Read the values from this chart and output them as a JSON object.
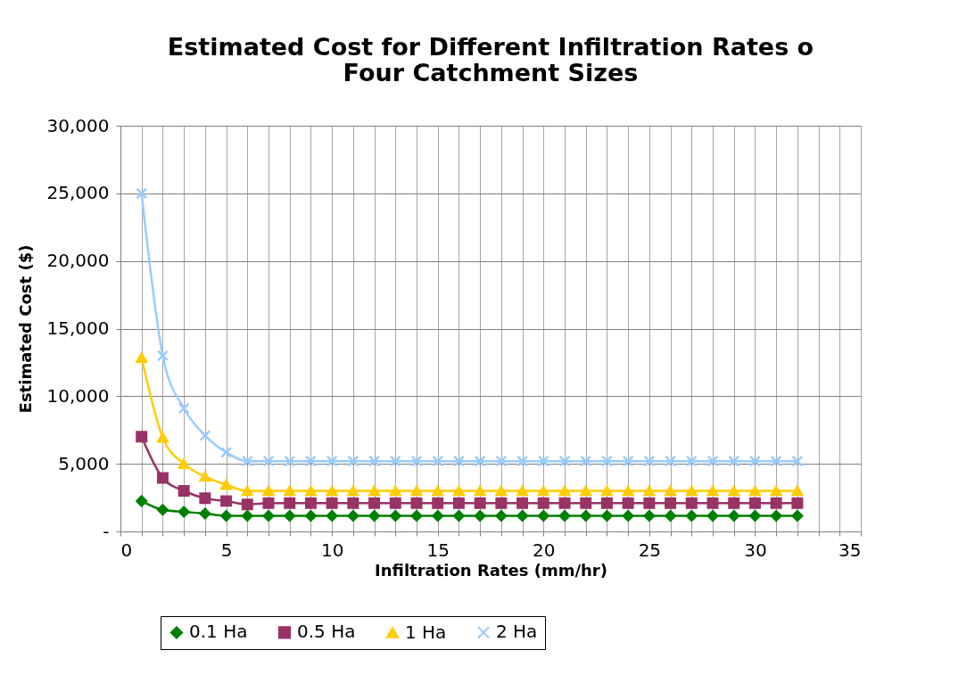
{
  "chart_data": {
    "type": "line",
    "title": "Estimated Cost for Different Infiltration Rates o\nFour Catchment Sizes",
    "xlabel": "Infiltration Rates (mm/hr)",
    "ylabel": "Estimated Cost ($)",
    "x": [
      1,
      2,
      3,
      4,
      5,
      6,
      7,
      8,
      9,
      10,
      11,
      12,
      13,
      14,
      15,
      16,
      17,
      18,
      19,
      20,
      21,
      22,
      23,
      24,
      25,
      26,
      27,
      28,
      29,
      30,
      31,
      32
    ],
    "series": [
      {
        "name": "0.1 Ha",
        "color": "#008000",
        "marker": "diamond",
        "values": [
          2250,
          1600,
          1450,
          1320,
          1150,
          1150,
          1150,
          1150,
          1150,
          1150,
          1150,
          1150,
          1150,
          1150,
          1150,
          1150,
          1150,
          1150,
          1150,
          1150,
          1150,
          1150,
          1150,
          1150,
          1150,
          1150,
          1150,
          1150,
          1150,
          1150,
          1150,
          1150
        ]
      },
      {
        "name": "0.5 Ha",
        "color": "#993366",
        "marker": "square",
        "values": [
          7000,
          3950,
          3000,
          2450,
          2250,
          2000,
          2100,
          2100,
          2100,
          2100,
          2100,
          2100,
          2100,
          2100,
          2100,
          2100,
          2100,
          2100,
          2100,
          2100,
          2100,
          2100,
          2100,
          2100,
          2100,
          2100,
          2100,
          2100,
          2100,
          2100,
          2100,
          2100
        ]
      },
      {
        "name": "1 Ha",
        "color": "#ffcc00",
        "marker": "triangle",
        "values": [
          12850,
          6950,
          5000,
          4050,
          3450,
          3000,
          3000,
          3000,
          3000,
          3000,
          3000,
          3000,
          3000,
          3000,
          3000,
          3000,
          3000,
          3000,
          3000,
          3000,
          3000,
          3000,
          3000,
          3000,
          3000,
          3000,
          3000,
          3000,
          3000,
          3000,
          3000,
          3000
        ]
      },
      {
        "name": "2 Ha",
        "color": "#99ccff",
        "marker": "cross",
        "values": [
          25000,
          13000,
          9100,
          7100,
          5850,
          5200,
          5200,
          5200,
          5200,
          5200,
          5200,
          5200,
          5200,
          5200,
          5200,
          5200,
          5200,
          5200,
          5200,
          5200,
          5200,
          5200,
          5200,
          5200,
          5200,
          5200,
          5200,
          5200,
          5200,
          5200,
          5200,
          5200
        ]
      }
    ],
    "xlim": [
      0,
      35
    ],
    "xticks": [
      0,
      {
        "value": 1,
        "label": null
      },
      {
        "value": 2,
        "label": null
      },
      {
        "value": 3,
        "label": null
      },
      {
        "value": 4,
        "label": null
      },
      5,
      {
        "value": 6,
        "label": null
      },
      {
        "value": 7,
        "label": null
      },
      {
        "value": 8,
        "label": null
      },
      {
        "value": 9,
        "label": null
      },
      10,
      {
        "value": 11,
        "label": null
      },
      {
        "value": 12,
        "label": null
      },
      {
        "value": 13,
        "label": null
      },
      {
        "value": 14,
        "label": null
      },
      15,
      {
        "value": 16,
        "label": null
      },
      {
        "value": 17,
        "label": null
      },
      {
        "value": 18,
        "label": null
      },
      {
        "value": 19,
        "label": null
      },
      20,
      {
        "value": 21,
        "label": null
      },
      {
        "value": 22,
        "label": null
      },
      {
        "value": 23,
        "label": null
      },
      {
        "value": 24,
        "label": null
      },
      25,
      {
        "value": 26,
        "label": null
      },
      {
        "value": 27,
        "label": null
      },
      {
        "value": 28,
        "label": null
      },
      {
        "value": 29,
        "label": null
      },
      30,
      {
        "value": 31,
        "label": null
      },
      {
        "value": 32,
        "label": null
      },
      {
        "value": 33,
        "label": null
      },
      {
        "value": 34,
        "label": null
      },
      35
    ],
    "ylim": [
      0,
      30000
    ],
    "yticks": [
      {
        "value": 0,
        "label": "-"
      },
      {
        "value": 5000,
        "label": "5,000"
      },
      {
        "value": 10000,
        "label": "10,000"
      },
      {
        "value": 15000,
        "label": "15,000"
      },
      {
        "value": 20000,
        "label": "20,000"
      },
      {
        "value": 25000,
        "label": "25,000"
      },
      {
        "value": 30000,
        "label": "30,000"
      }
    ],
    "grid": true,
    "legend": "bottom"
  }
}
